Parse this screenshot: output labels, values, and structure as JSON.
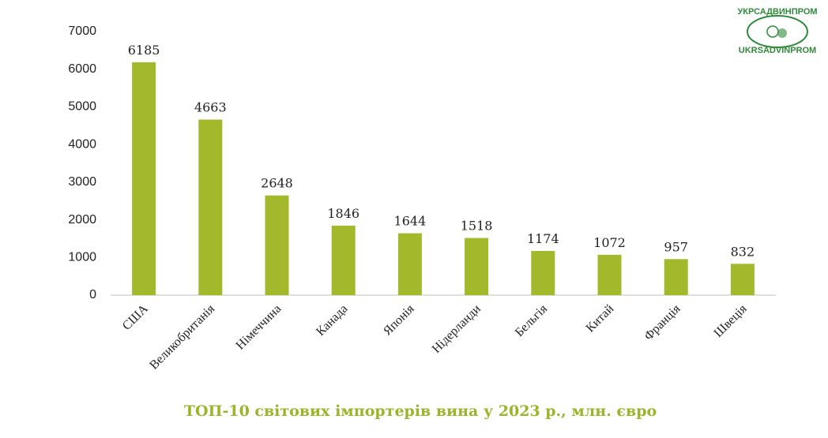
{
  "chart_data": {
    "type": "bar",
    "title": "ТОП-10 світових імпортерів вина у 2023 р., млн. євро",
    "categories": [
      "США",
      "Великобританія",
      "Німеччина",
      "Канада",
      "Японія",
      "Нідерланди",
      "Бельгія",
      "Китай",
      "Франція",
      "Швеція"
    ],
    "values": [
      6185,
      4663,
      2648,
      1846,
      1644,
      1518,
      1174,
      1072,
      957,
      832
    ],
    "color": "#a3b82b",
    "ylim": [
      0,
      7000
    ],
    "yticks": [
      0,
      1000,
      2000,
      3000,
      4000,
      5000,
      6000,
      7000
    ],
    "grid": false
  },
  "logo": {
    "top": "УКРСАДВИНПРОМ",
    "bottom": "UKRSADVINPROM"
  }
}
